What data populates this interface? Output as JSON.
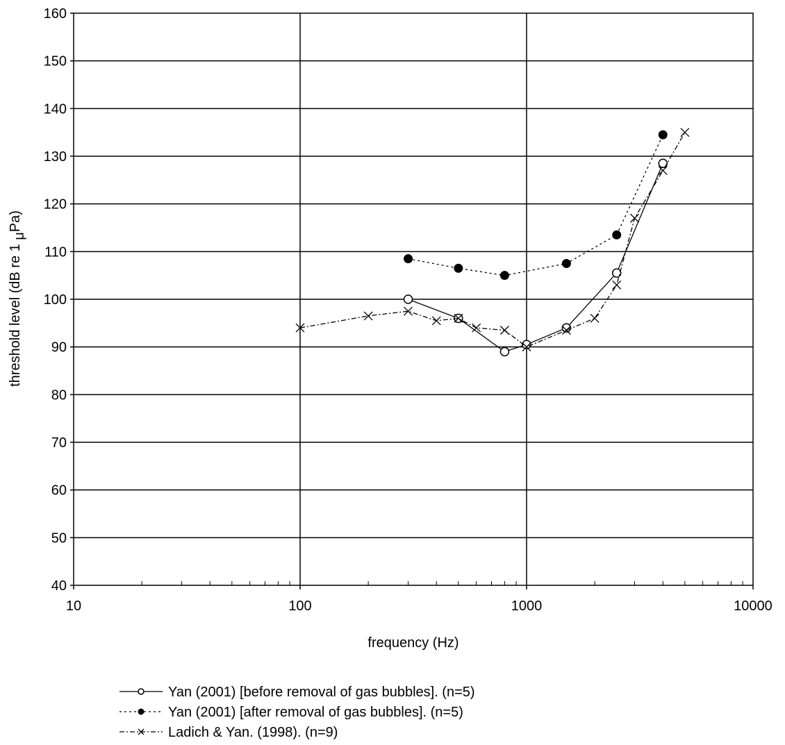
{
  "chart_data": {
    "type": "line",
    "xlabel": "frequency (Hz)",
    "ylabel_prefix": "threshold level (dB re 1 ",
    "ylabel_mu": "μ",
    "ylabel_suffix": "Pa)",
    "x_scale": "log",
    "xlim": [
      10,
      10000
    ],
    "ylim": [
      40,
      160
    ],
    "x_ticks": [
      {
        "value": 10,
        "label": "10"
      },
      {
        "value": 100,
        "label": "100"
      },
      {
        "value": 1000,
        "label": "1000"
      },
      {
        "value": 10000,
        "label": "10000"
      }
    ],
    "y_ticks": [
      {
        "value": 40,
        "label": "40"
      },
      {
        "value": 50,
        "label": "50"
      },
      {
        "value": 60,
        "label": "60"
      },
      {
        "value": 70,
        "label": "70"
      },
      {
        "value": 80,
        "label": "80"
      },
      {
        "value": 90,
        "label": "90"
      },
      {
        "value": 100,
        "label": "100"
      },
      {
        "value": 110,
        "label": "110"
      },
      {
        "value": 120,
        "label": "120"
      },
      {
        "value": 130,
        "label": "130"
      },
      {
        "value": 140,
        "label": "140"
      },
      {
        "value": 150,
        "label": "150"
      },
      {
        "value": 160,
        "label": "160"
      }
    ],
    "grid": "major",
    "legend_position": "bottom",
    "series": [
      {
        "name": "Yan (2001) [before removal of gas bubbles]. (n=5)",
        "marker": "open-circle",
        "line_style": "solid",
        "x": [
          300,
          500,
          800,
          1000,
          1500,
          2500,
          4000
        ],
        "y": [
          100,
          96,
          89,
          90.5,
          94,
          105.5,
          128.5
        ]
      },
      {
        "name": "Yan (2001) [after removal of gas bubbles]. (n=5)",
        "marker": "filled-circle",
        "line_style": "dotted",
        "x": [
          300,
          500,
          800,
          1500,
          2500,
          4000
        ],
        "y": [
          108.5,
          106.5,
          105,
          107.5,
          113.5,
          134.5
        ]
      },
      {
        "name": "Ladich & Yan. (1998). (n=9)",
        "marker": "cross",
        "line_style": "dash-dot",
        "x": [
          100,
          200,
          300,
          400,
          500,
          600,
          800,
          1000,
          1500,
          2000,
          2500,
          3000,
          4000,
          5000
        ],
        "y": [
          94,
          96.5,
          97.5,
          95.5,
          96,
          94,
          93.5,
          90,
          93.5,
          96,
          103,
          117,
          127,
          135
        ]
      }
    ]
  }
}
